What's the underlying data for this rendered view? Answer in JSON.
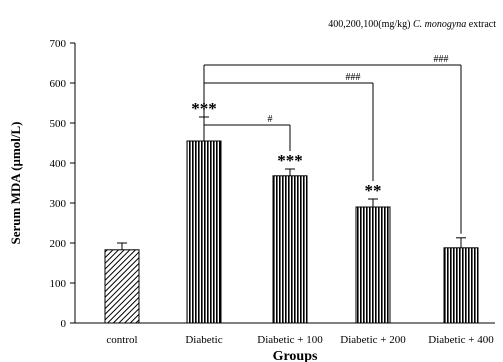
{
  "chart_data": {
    "type": "bar",
    "title": "",
    "annotation_prefix": "400,200,100(mg/kg) ",
    "annotation_italic": "C. monogyna",
    "annotation_suffix": " extract",
    "xlabel": "Groups",
    "ylabel": "Serum MDA (µmol/L)",
    "ylim": [
      0,
      700
    ],
    "yticks": [
      "0",
      "100",
      "200",
      "300",
      "400",
      "500",
      "600",
      "700"
    ],
    "ytick_values": [
      0,
      100,
      200,
      300,
      400,
      500,
      600,
      700
    ],
    "grid": false,
    "categories": [
      "control",
      "Diabetic",
      "Diabetic + 100",
      "Diabetic + 200",
      "Diabetic + 400"
    ],
    "values": [
      183,
      455,
      368,
      290,
      188
    ],
    "errors": [
      17,
      60,
      17,
      20,
      25
    ],
    "patterns": [
      "diagonal-hatch",
      "vertical-hatch",
      "vertical-hatch",
      "vertical-hatch",
      "vertical-hatch"
    ],
    "significance_marks": [
      "",
      "***",
      "***",
      "**",
      ""
    ],
    "comparisons": [
      {
        "from": 1,
        "to": 2,
        "label": "#",
        "level": 495
      },
      {
        "from": 1,
        "to": 3,
        "label": "###",
        "level": 600
      },
      {
        "from": 1,
        "to": 4,
        "label": "###",
        "level": 645
      }
    ]
  }
}
